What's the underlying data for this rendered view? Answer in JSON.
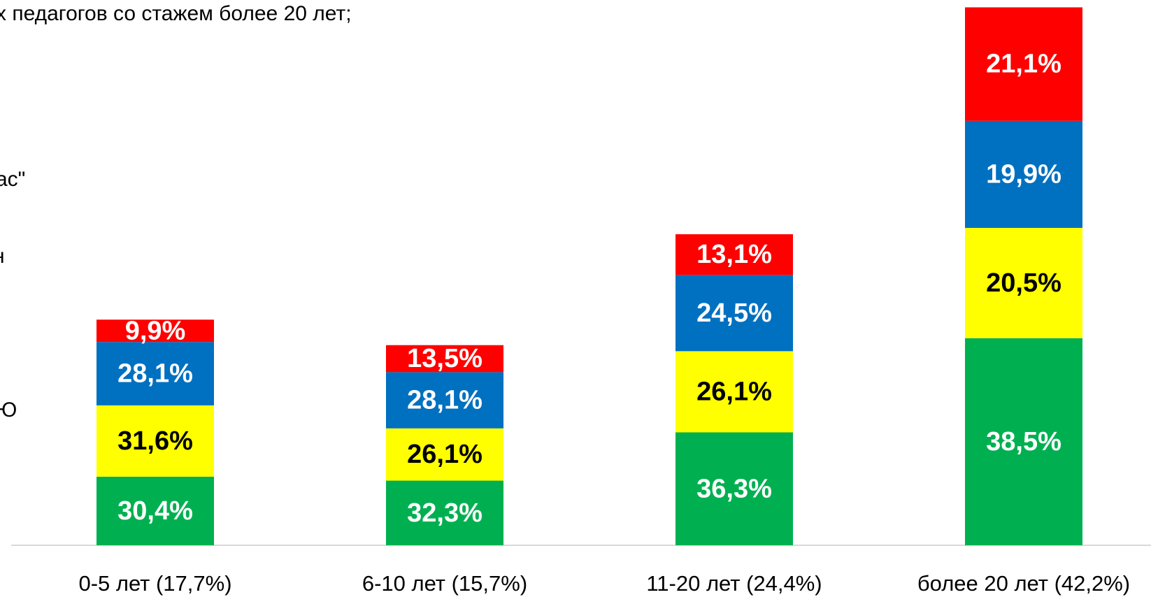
{
  "chart_data": {
    "type": "stacked_bar",
    "categories": [
      "0-5 лет (17,7%)",
      "6-10 лет (15,7%)",
      "11-20 лет (24,4%)",
      "более 20 лет (42,2%)"
    ],
    "category_values": [
      17.7,
      15.7,
      24.4,
      42.2
    ],
    "series": [
      {
        "color": "#00b050",
        "label_color": "#ffffff",
        "values": [
          30.4,
          32.3,
          36.3,
          38.5
        ],
        "value_labels": [
          "30,4%",
          "32,3%",
          "36,3%",
          "38,5%"
        ]
      },
      {
        "color": "#ffff00",
        "label_color": "#000000",
        "values": [
          31.6,
          26.1,
          26.1,
          20.5
        ],
        "value_labels": [
          "31,6%",
          "26,1%",
          "26,1%",
          "20,5%"
        ]
      },
      {
        "color": "#0070c0",
        "label_color": "#ffffff",
        "values": [
          28.1,
          28.1,
          24.5,
          19.9
        ],
        "value_labels": [
          "28,1%",
          "28,1%",
          "24,5%",
          "19,9%"
        ]
      },
      {
        "color": "#ff0000",
        "label_color": "#ffffff",
        "values": [
          9.9,
          13.5,
          13.1,
          21.1
        ],
        "value_labels": [
          "9,9%",
          "13,5%",
          "13,1%",
          "21,1%"
        ]
      }
    ],
    "legend_fragments": [
      "х педагогов со стажем более 20 лет;",
      "ас\"",
      "н",
      "Ю"
    ]
  }
}
